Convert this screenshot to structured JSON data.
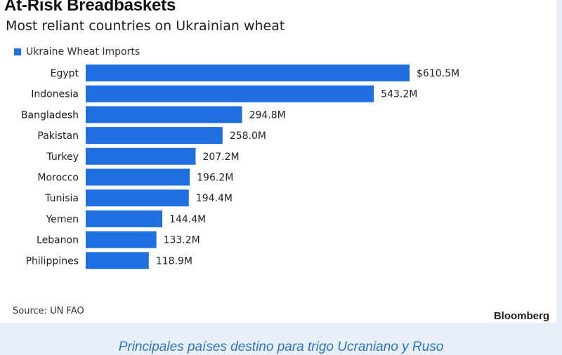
{
  "chart_data": {
    "type": "bar",
    "orientation": "horizontal",
    "title": "At-Risk Breadbaskets",
    "subtitle": "Most reliant countries on Ukrainian wheat",
    "categories": [
      "Egypt",
      "Indonesia",
      "Bangladesh",
      "Pakistan",
      "Turkey",
      "Morocco",
      "Tunisia",
      "Yemen",
      "Lebanon",
      "Philippines"
    ],
    "series": [
      {
        "name": "Ukraine Wheat Imports",
        "color": "#1f6fe0",
        "values": [
          610.5,
          543.2,
          294.8,
          258.0,
          207.2,
          196.2,
          194.4,
          144.4,
          133.2,
          118.9
        ],
        "labels": [
          "$610.5M",
          "543.2M",
          "294.8M",
          "258.0M",
          "207.2M",
          "196.2M",
          "194.4M",
          "144.4M",
          "133.2M",
          "118.9M"
        ]
      }
    ],
    "xlim": [
      0,
      610.5
    ],
    "legend": "top-left",
    "grid": false
  },
  "source": "Source: UN FAO",
  "brand": "Bloomberg",
  "caption": "Principales países destino para trigo Ucraniano y Ruso"
}
